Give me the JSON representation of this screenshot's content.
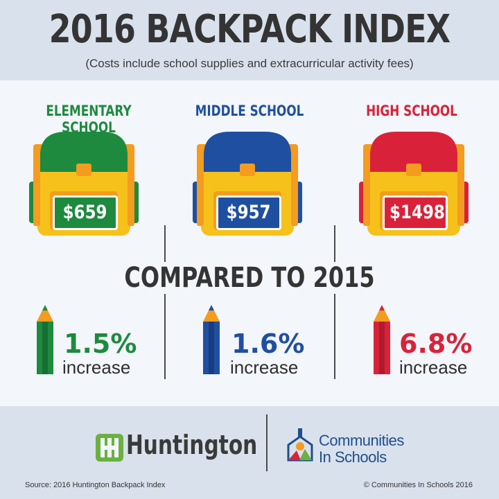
{
  "header": {
    "title": "2016 BACKPACK INDEX",
    "subtitle": "(Costs include school supplies and extracurricular activity fees)"
  },
  "schools": [
    {
      "label": "ELEMENTARY SCHOOL",
      "price": "$659",
      "percent": "1.5%",
      "change_label": "increase",
      "color": "#1d8a3e"
    },
    {
      "label": "MIDDLE SCHOOL",
      "price": "$957",
      "percent": "1.6%",
      "change_label": "increase",
      "color": "#1f4fa0"
    },
    {
      "label": "HIGH SCHOOL",
      "price": "$1498",
      "percent": "6.8%",
      "change_label": "increase",
      "color": "#d9223a"
    }
  ],
  "comparison": {
    "heading": "COMPARED TO 2015"
  },
  "footer": {
    "huntington": "Huntington",
    "cis_line1": "Communities",
    "cis_line2": "In Schools",
    "source": "Source: 2016 Huntington Backpack Index",
    "copyright": "© Communities In Schools 2016"
  }
}
